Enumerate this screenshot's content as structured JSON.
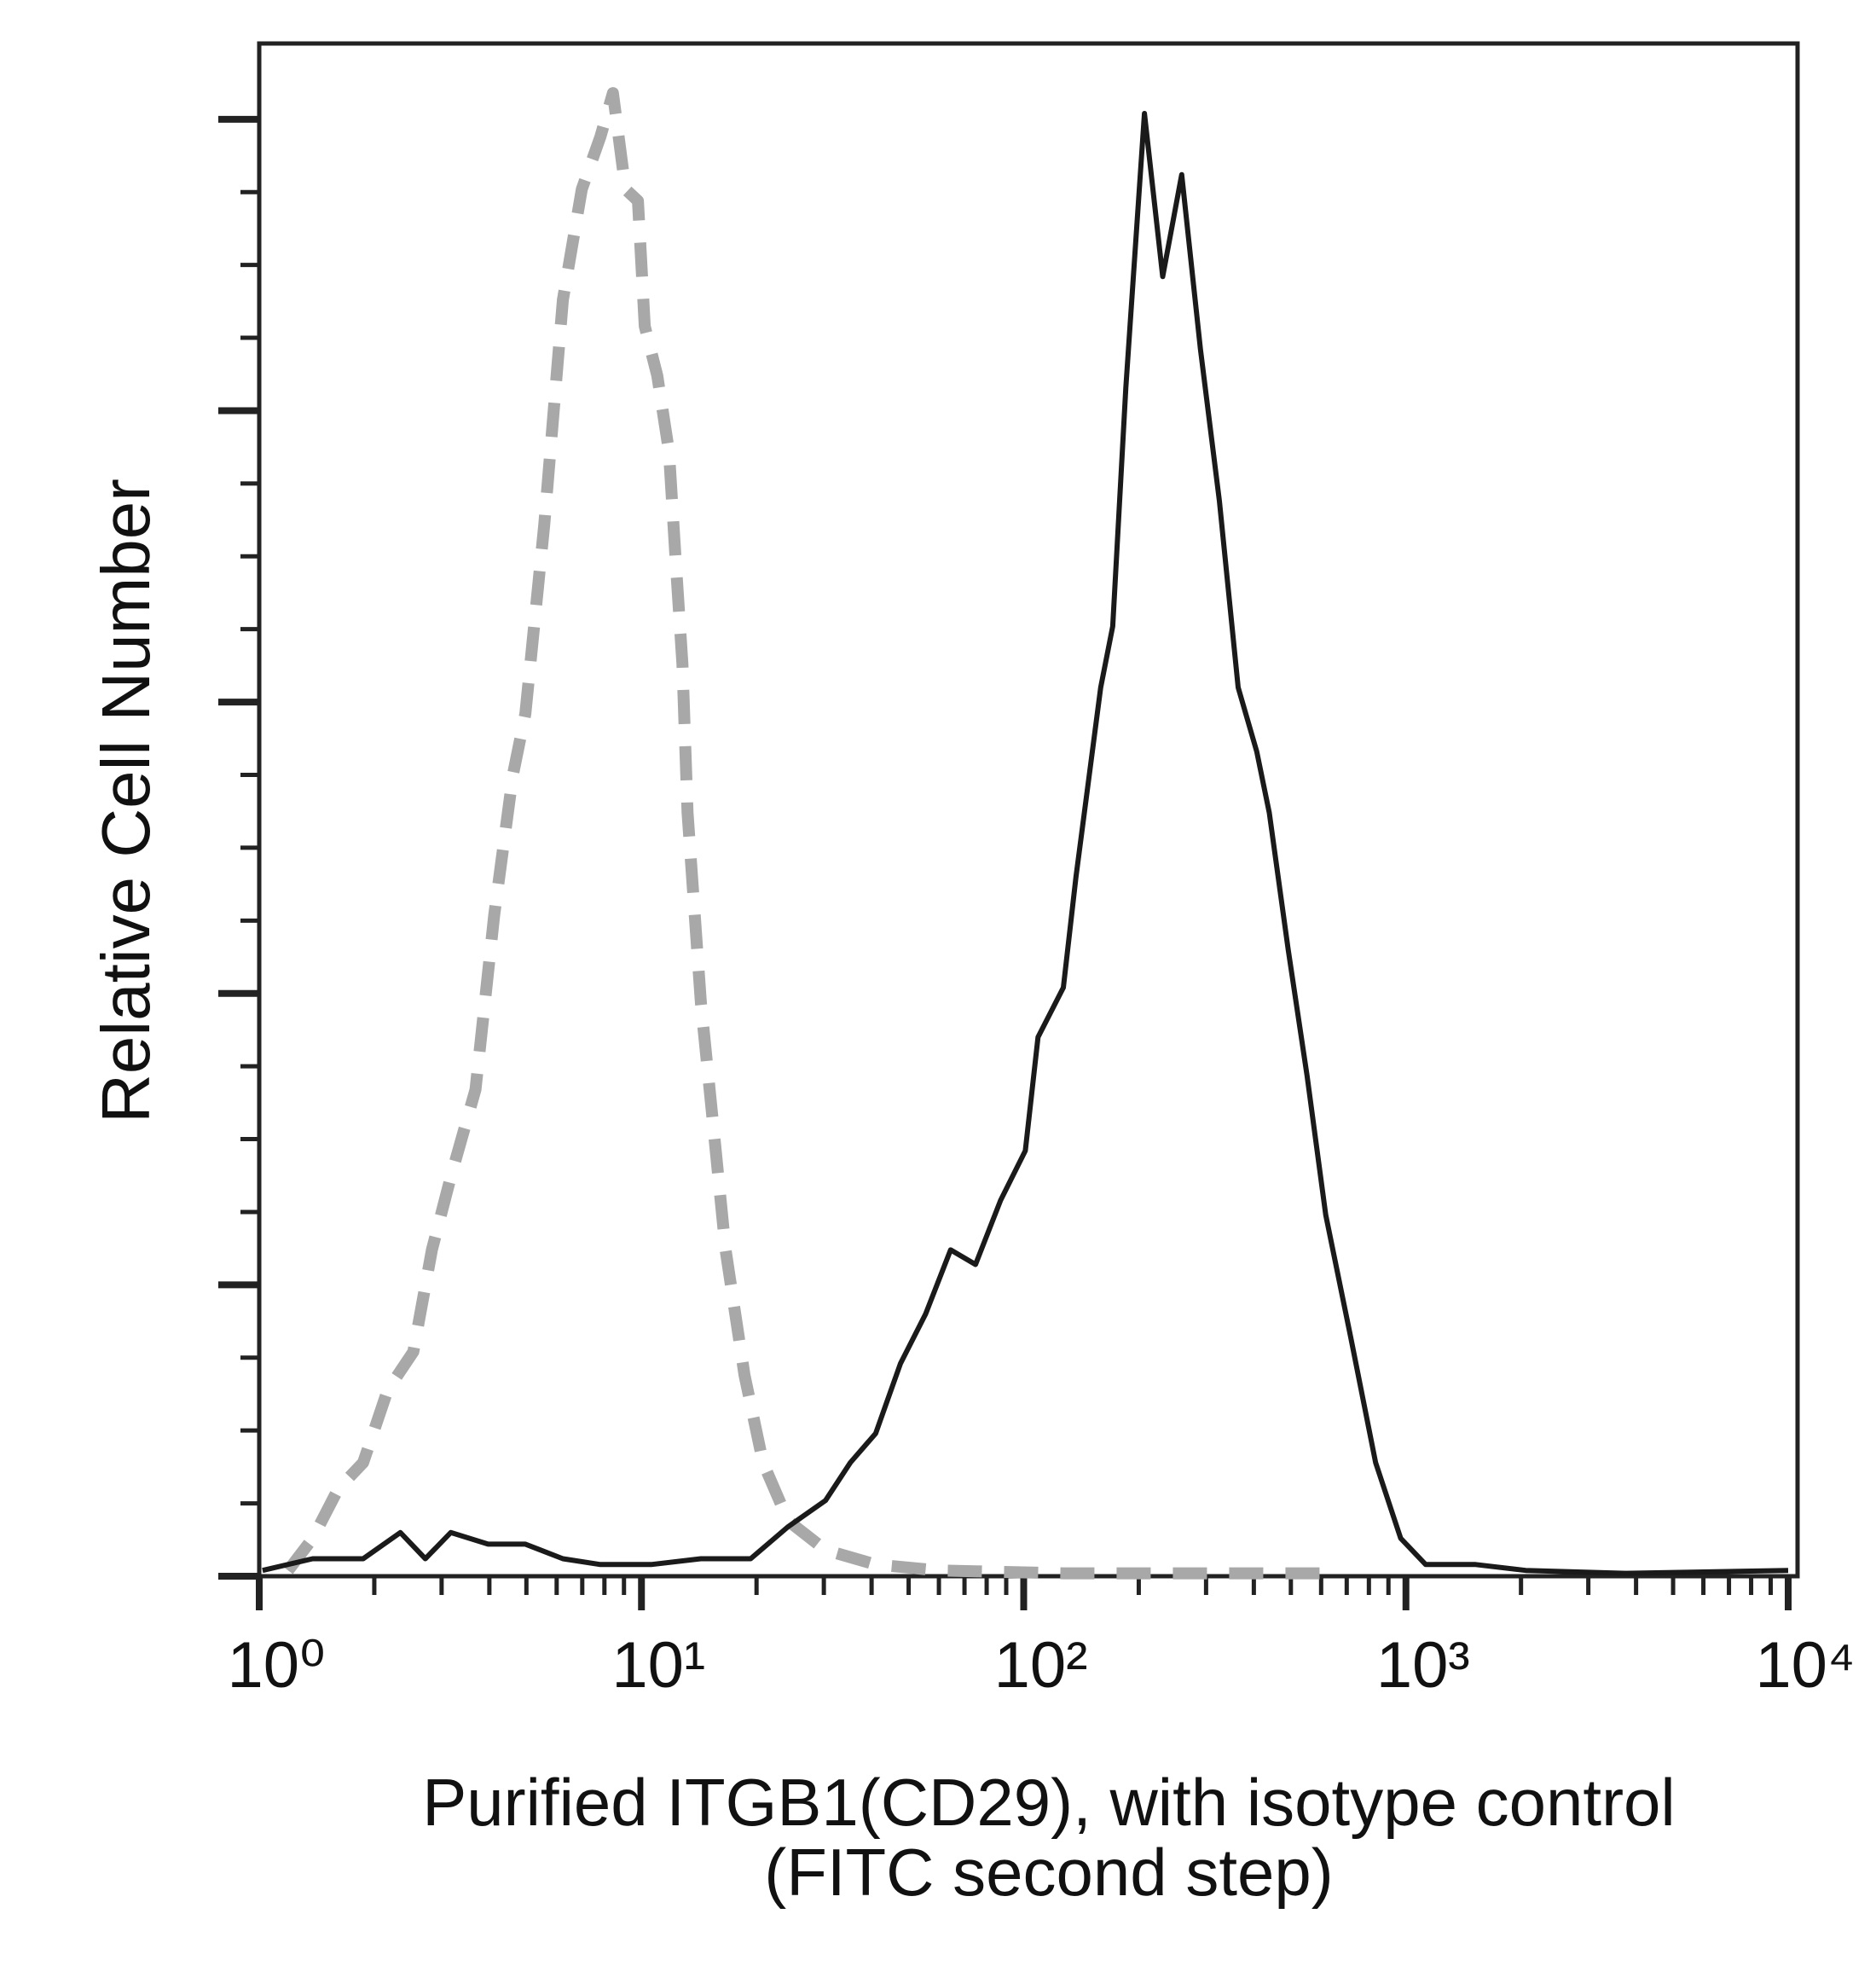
{
  "chart_data": {
    "type": "line",
    "ylabel": "Relative Cell Number",
    "xlabel": [
      "Purified ITGB1(CD29), with isotype control",
      "(FITC second step)"
    ],
    "xscale": "log",
    "xlim": [
      1,
      10000
    ],
    "xticks": [
      {
        "value": 1,
        "label": "10⁰"
      },
      {
        "value": 10,
        "label": "10¹"
      },
      {
        "value": 100,
        "label": "10²"
      },
      {
        "value": 1000,
        "label": "10³"
      },
      {
        "value": 10000,
        "label": "10⁴"
      }
    ],
    "xminor_ticks": [
      2,
      3,
      4,
      5,
      6,
      7,
      8,
      9,
      20,
      30,
      40,
      50,
      60,
      70,
      80,
      90,
      200,
      300,
      400,
      500,
      600,
      700,
      800,
      900,
      2000,
      3000,
      4000,
      5000,
      6000,
      7000,
      8000,
      9000
    ],
    "ylim": [
      0,
      5.26
    ],
    "yticks": [
      0,
      1,
      2,
      3,
      4,
      5
    ],
    "yminor_ticks": [
      0.25,
      0.5,
      0.75,
      1.25,
      1.5,
      1.75,
      2.25,
      2.5,
      2.75,
      3.25,
      3.5,
      3.75,
      4.25,
      4.5,
      4.75
    ],
    "series": [
      {
        "color": "#a8a8a8",
        "dash": true,
        "x": [
          1.19,
          1.38,
          1.61,
          1.87,
          2.17,
          2.53,
          2.83,
          3.17,
          3.68,
          4.12,
          4.61,
          4.97,
          5.57,
          6.23,
          6.98,
          7.81,
          8.42,
          9.08,
          9.79,
          10.2,
          11.0,
          11.8,
          12.3,
          12.8,
          13.2,
          14.3,
          15.4,
          16.6,
          18.6,
          20.8,
          24.2,
          30.3,
          41.0,
          59.7,
          127,
          269,
          617
        ],
        "values": [
          0.02,
          0.13,
          0.3,
          0.39,
          0.64,
          0.77,
          1.12,
          1.37,
          1.67,
          2.27,
          2.75,
          2.96,
          3.61,
          4.38,
          4.76,
          4.94,
          5.09,
          4.76,
          4.72,
          4.29,
          4.12,
          3.86,
          3.48,
          3.13,
          2.62,
          1.97,
          1.55,
          1.12,
          0.69,
          0.39,
          0.19,
          0.09,
          0.04,
          0.02,
          0.01,
          0.01,
          0.01
        ]
      },
      {
        "color": "#1a1a1a",
        "dash": false,
        "x": [
          1.02,
          1.38,
          1.87,
          2.34,
          2.72,
          3.17,
          3.97,
          4.97,
          6.23,
          7.81,
          10.6,
          14.3,
          19.3,
          24.2,
          30.3,
          35.2,
          41.0,
          47.6,
          55.4,
          64.4,
          74.8,
          87.0,
          101,
          109,
          127,
          137,
          159,
          171,
          185,
          207,
          231,
          259,
          290,
          325,
          364,
          407,
          439,
          492,
          551,
          617,
          717,
          833,
          969,
          1126,
          1522,
          2057,
          3756,
          10000
        ],
        "values": [
          0.02,
          0.06,
          0.06,
          0.15,
          0.06,
          0.15,
          0.11,
          0.11,
          0.06,
          0.04,
          0.04,
          0.06,
          0.06,
          0.17,
          0.26,
          0.39,
          0.49,
          0.73,
          0.9,
          1.12,
          1.07,
          1.29,
          1.46,
          1.85,
          2.02,
          2.4,
          3.05,
          3.26,
          4.08,
          5.02,
          4.46,
          4.81,
          4.21,
          3.69,
          3.05,
          2.83,
          2.62,
          2.15,
          1.72,
          1.24,
          0.82,
          0.39,
          0.13,
          0.04,
          0.04,
          0.02,
          0.01,
          0.02
        ]
      }
    ]
  }
}
